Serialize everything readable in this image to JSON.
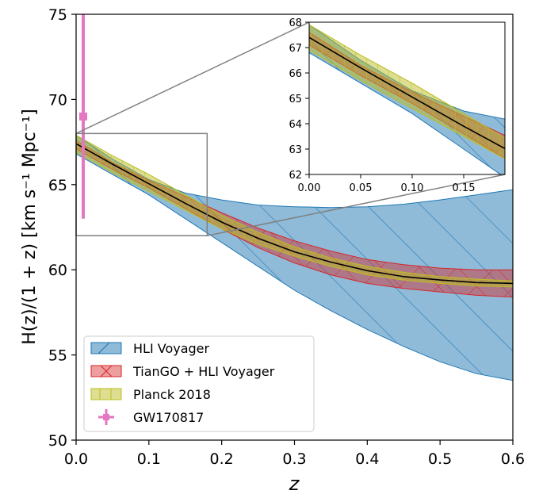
{
  "chart_data": {
    "type": "area",
    "xlabel": "z",
    "ylabel": "H(z)/(1 + z) [km s⁻¹ Mpc⁻¹]",
    "xlim": [
      0.0,
      0.6
    ],
    "ylim": [
      50,
      75
    ],
    "xticks": [
      "0.0",
      "0.1",
      "0.2",
      "0.3",
      "0.4",
      "0.5",
      "0.6"
    ],
    "yticks": [
      "50",
      "55",
      "60",
      "65",
      "70",
      "75"
    ],
    "grid": false,
    "legend_position": "lower-left",
    "colors": {
      "hli": "#1f77b4",
      "tiango": "#d62728",
      "planck": "#bcbd22",
      "gw": "#e377c2",
      "fiducial": "#000000"
    },
    "series": [
      {
        "name": "HLI Voyager",
        "style": "band",
        "x": [
          0.0,
          0.05,
          0.1,
          0.15,
          0.2,
          0.25,
          0.3,
          0.35,
          0.4,
          0.45,
          0.5,
          0.55,
          0.6
        ],
        "lower": [
          66.8,
          65.6,
          64.4,
          63.0,
          61.6,
          60.2,
          58.8,
          57.6,
          56.5,
          55.5,
          54.6,
          53.9,
          53.5
        ],
        "upper": [
          67.9,
          66.5,
          65.3,
          64.5,
          64.1,
          63.8,
          63.7,
          63.65,
          63.7,
          63.85,
          64.1,
          64.4,
          64.7
        ]
      },
      {
        "name": "TianGO + HLI Voyager",
        "style": "band",
        "x": [
          0.0,
          0.05,
          0.1,
          0.15,
          0.2,
          0.25,
          0.3,
          0.35,
          0.4,
          0.45,
          0.5,
          0.55,
          0.6
        ],
        "lower": [
          67.1,
          65.9,
          64.8,
          63.6,
          62.4,
          61.3,
          60.4,
          59.7,
          59.2,
          58.9,
          58.7,
          58.5,
          58.4
        ],
        "upper": [
          67.6,
          66.3,
          65.25,
          64.3,
          63.35,
          62.45,
          61.7,
          61.1,
          60.6,
          60.3,
          60.1,
          60.0,
          60.0
        ]
      },
      {
        "name": "Planck 2018",
        "style": "band",
        "x": [
          0.0,
          0.05,
          0.1,
          0.15,
          0.2,
          0.25,
          0.3,
          0.35,
          0.4,
          0.45,
          0.5,
          0.55,
          0.6
        ],
        "lower": [
          66.9,
          65.7,
          64.6,
          63.5,
          62.4,
          61.5,
          60.8,
          60.2,
          59.7,
          59.4,
          59.2,
          59.05,
          59.0
        ],
        "upper": [
          67.9,
          66.7,
          65.6,
          64.4,
          63.2,
          62.2,
          61.35,
          60.7,
          60.2,
          59.85,
          59.6,
          59.45,
          59.35
        ]
      },
      {
        "name": "fiducial",
        "style": "line",
        "x": [
          0.0,
          0.05,
          0.1,
          0.15,
          0.2,
          0.25,
          0.3,
          0.35,
          0.4,
          0.45,
          0.5,
          0.55,
          0.6
        ],
        "values": [
          67.4,
          66.2,
          65.05,
          63.9,
          62.8,
          61.85,
          61.05,
          60.45,
          59.95,
          59.6,
          59.4,
          59.25,
          59.2
        ]
      },
      {
        "name": "GW170817",
        "style": "errorbar",
        "x": 0.0098,
        "y": 69.0,
        "yerr_minus": 6.0,
        "yerr_plus": 12.0
      }
    ],
    "legend": [
      "HLI Voyager",
      "TianGO + HLI Voyager",
      "Planck 2018",
      "GW170817"
    ],
    "zoom_box": {
      "xlim": [
        0.0,
        0.18
      ],
      "ylim": [
        62,
        68
      ]
    },
    "inset": {
      "xlim": [
        0.0,
        0.19
      ],
      "ylim": [
        62,
        68
      ],
      "xticks": [
        "0.00",
        "0.05",
        "0.10",
        "0.15"
      ],
      "yticks": [
        "62",
        "63",
        "64",
        "65",
        "66",
        "67",
        "68"
      ]
    }
  }
}
